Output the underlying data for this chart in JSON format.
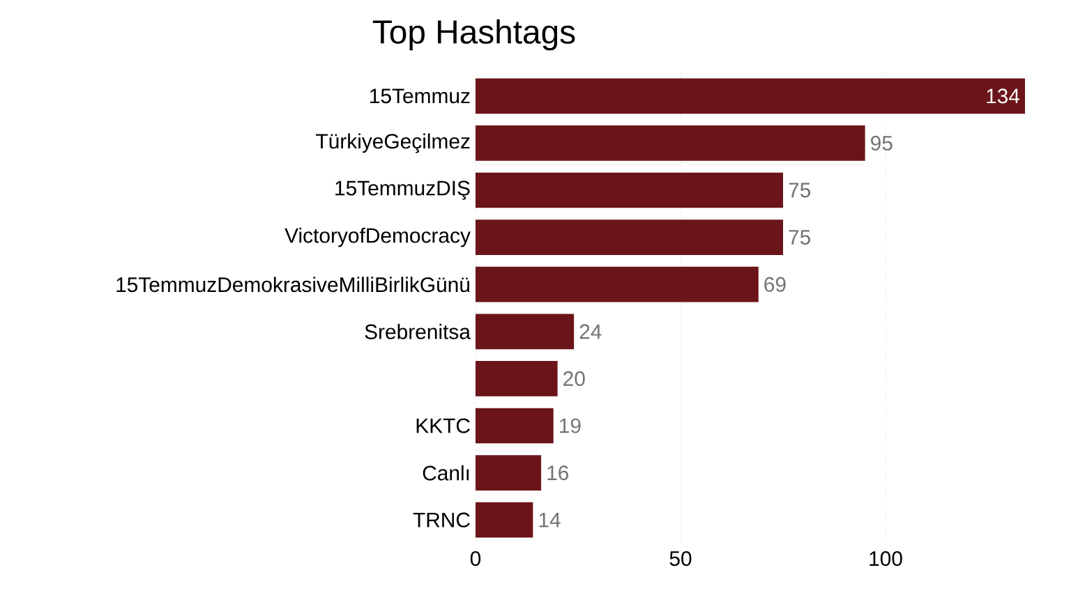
{
  "chart_data": {
    "type": "bar",
    "orientation": "horizontal",
    "title": "Top Hashtags",
    "categories": [
      "15Temmuz",
      "TürkiyeGeçilmez",
      "15TemmuzDIŞ",
      "VictoryofDemocracy",
      "15TemmuzDemokrasiveMilliBirlikGünü",
      "Srebrenitsa",
      null,
      "KKTC",
      "Canlı",
      "TRNC"
    ],
    "values": [
      134,
      95,
      75,
      75,
      69,
      24,
      20,
      19,
      16,
      14
    ],
    "color": "#6b1419",
    "xlim": [
      0,
      134
    ],
    "xticks": [
      0,
      50,
      100
    ],
    "grid": "x",
    "data_labels": true
  }
}
